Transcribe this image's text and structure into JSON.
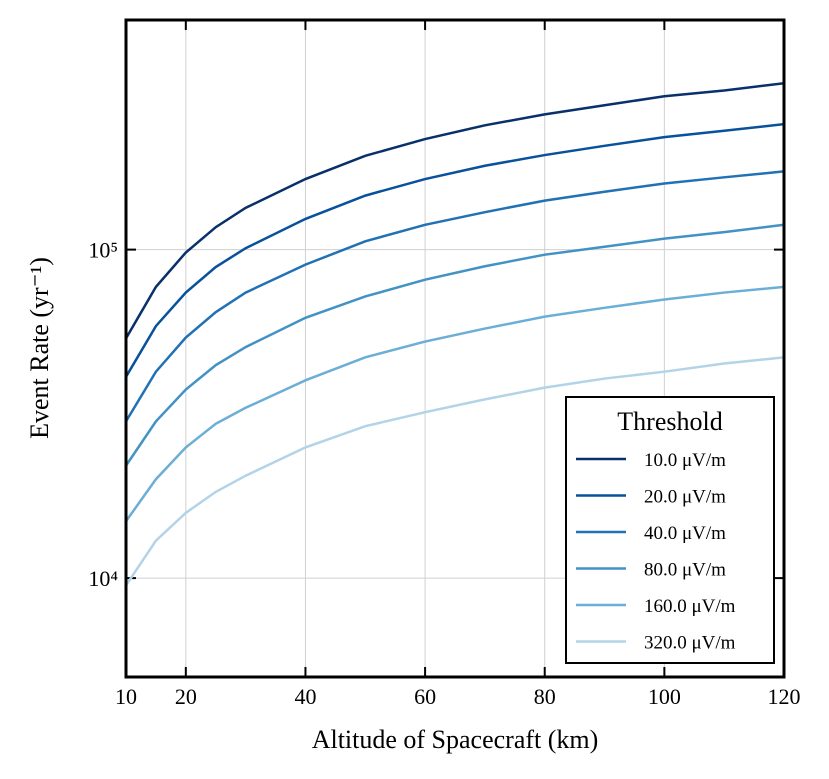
{
  "chart_data": {
    "type": "line",
    "xlabel": "Altitude of Spacecraft (km)",
    "ylabel": "Event Rate (yr⁻¹)",
    "x": [
      10,
      15,
      20,
      25,
      30,
      40,
      50,
      60,
      70,
      80,
      90,
      100,
      110,
      120
    ],
    "series": [
      {
        "name": "10.0 μV/m",
        "color": "#08306b",
        "values": [
          53700,
          77000,
          98000,
          117000,
          134000,
          164000,
          193000,
          217000,
          239000,
          258000,
          275000,
          293000,
          305000,
          321000
        ]
      },
      {
        "name": "20.0 μV/m",
        "color": "#08519c",
        "values": [
          41000,
          58500,
          74000,
          88500,
          101000,
          124000,
          146000,
          164000,
          180000,
          194000,
          207000,
          220000,
          230000,
          241000
        ]
      },
      {
        "name": "40.0 μV/m",
        "color": "#2171b5",
        "values": [
          30000,
          42500,
          54000,
          64500,
          74000,
          90000,
          106000,
          119000,
          130000,
          141000,
          150000,
          159000,
          166000,
          173000
        ]
      },
      {
        "name": "80.0 μV/m",
        "color": "#4292c6",
        "values": [
          22000,
          30000,
          37500,
          44500,
          50500,
          62000,
          72000,
          81000,
          89000,
          96500,
          102000,
          108000,
          113000,
          119000
        ]
      },
      {
        "name": "160.0 μV/m",
        "color": "#6baed6",
        "values": [
          14900,
          20000,
          25000,
          29500,
          33000,
          40000,
          47000,
          52500,
          57500,
          62500,
          66500,
          70500,
          74000,
          77000
        ]
      },
      {
        "name": "320.0 μV/m",
        "color": "#b3d3e8",
        "values": [
          9500,
          13000,
          15800,
          18300,
          20500,
          25000,
          29000,
          32000,
          35000,
          38000,
          40500,
          42500,
          45000,
          47000
        ]
      }
    ],
    "xlim": [
      10,
      120
    ],
    "xticks": [
      10,
      20,
      40,
      60,
      80,
      100,
      120
    ],
    "ylim": [
      5000,
      500000
    ],
    "yticks": [
      {
        "value": 10000,
        "label": "10⁴"
      },
      {
        "value": 100000,
        "label": "10⁵"
      }
    ],
    "ylog": true,
    "grid": true,
    "legend_title": "Threshold",
    "legend": "lower right"
  }
}
